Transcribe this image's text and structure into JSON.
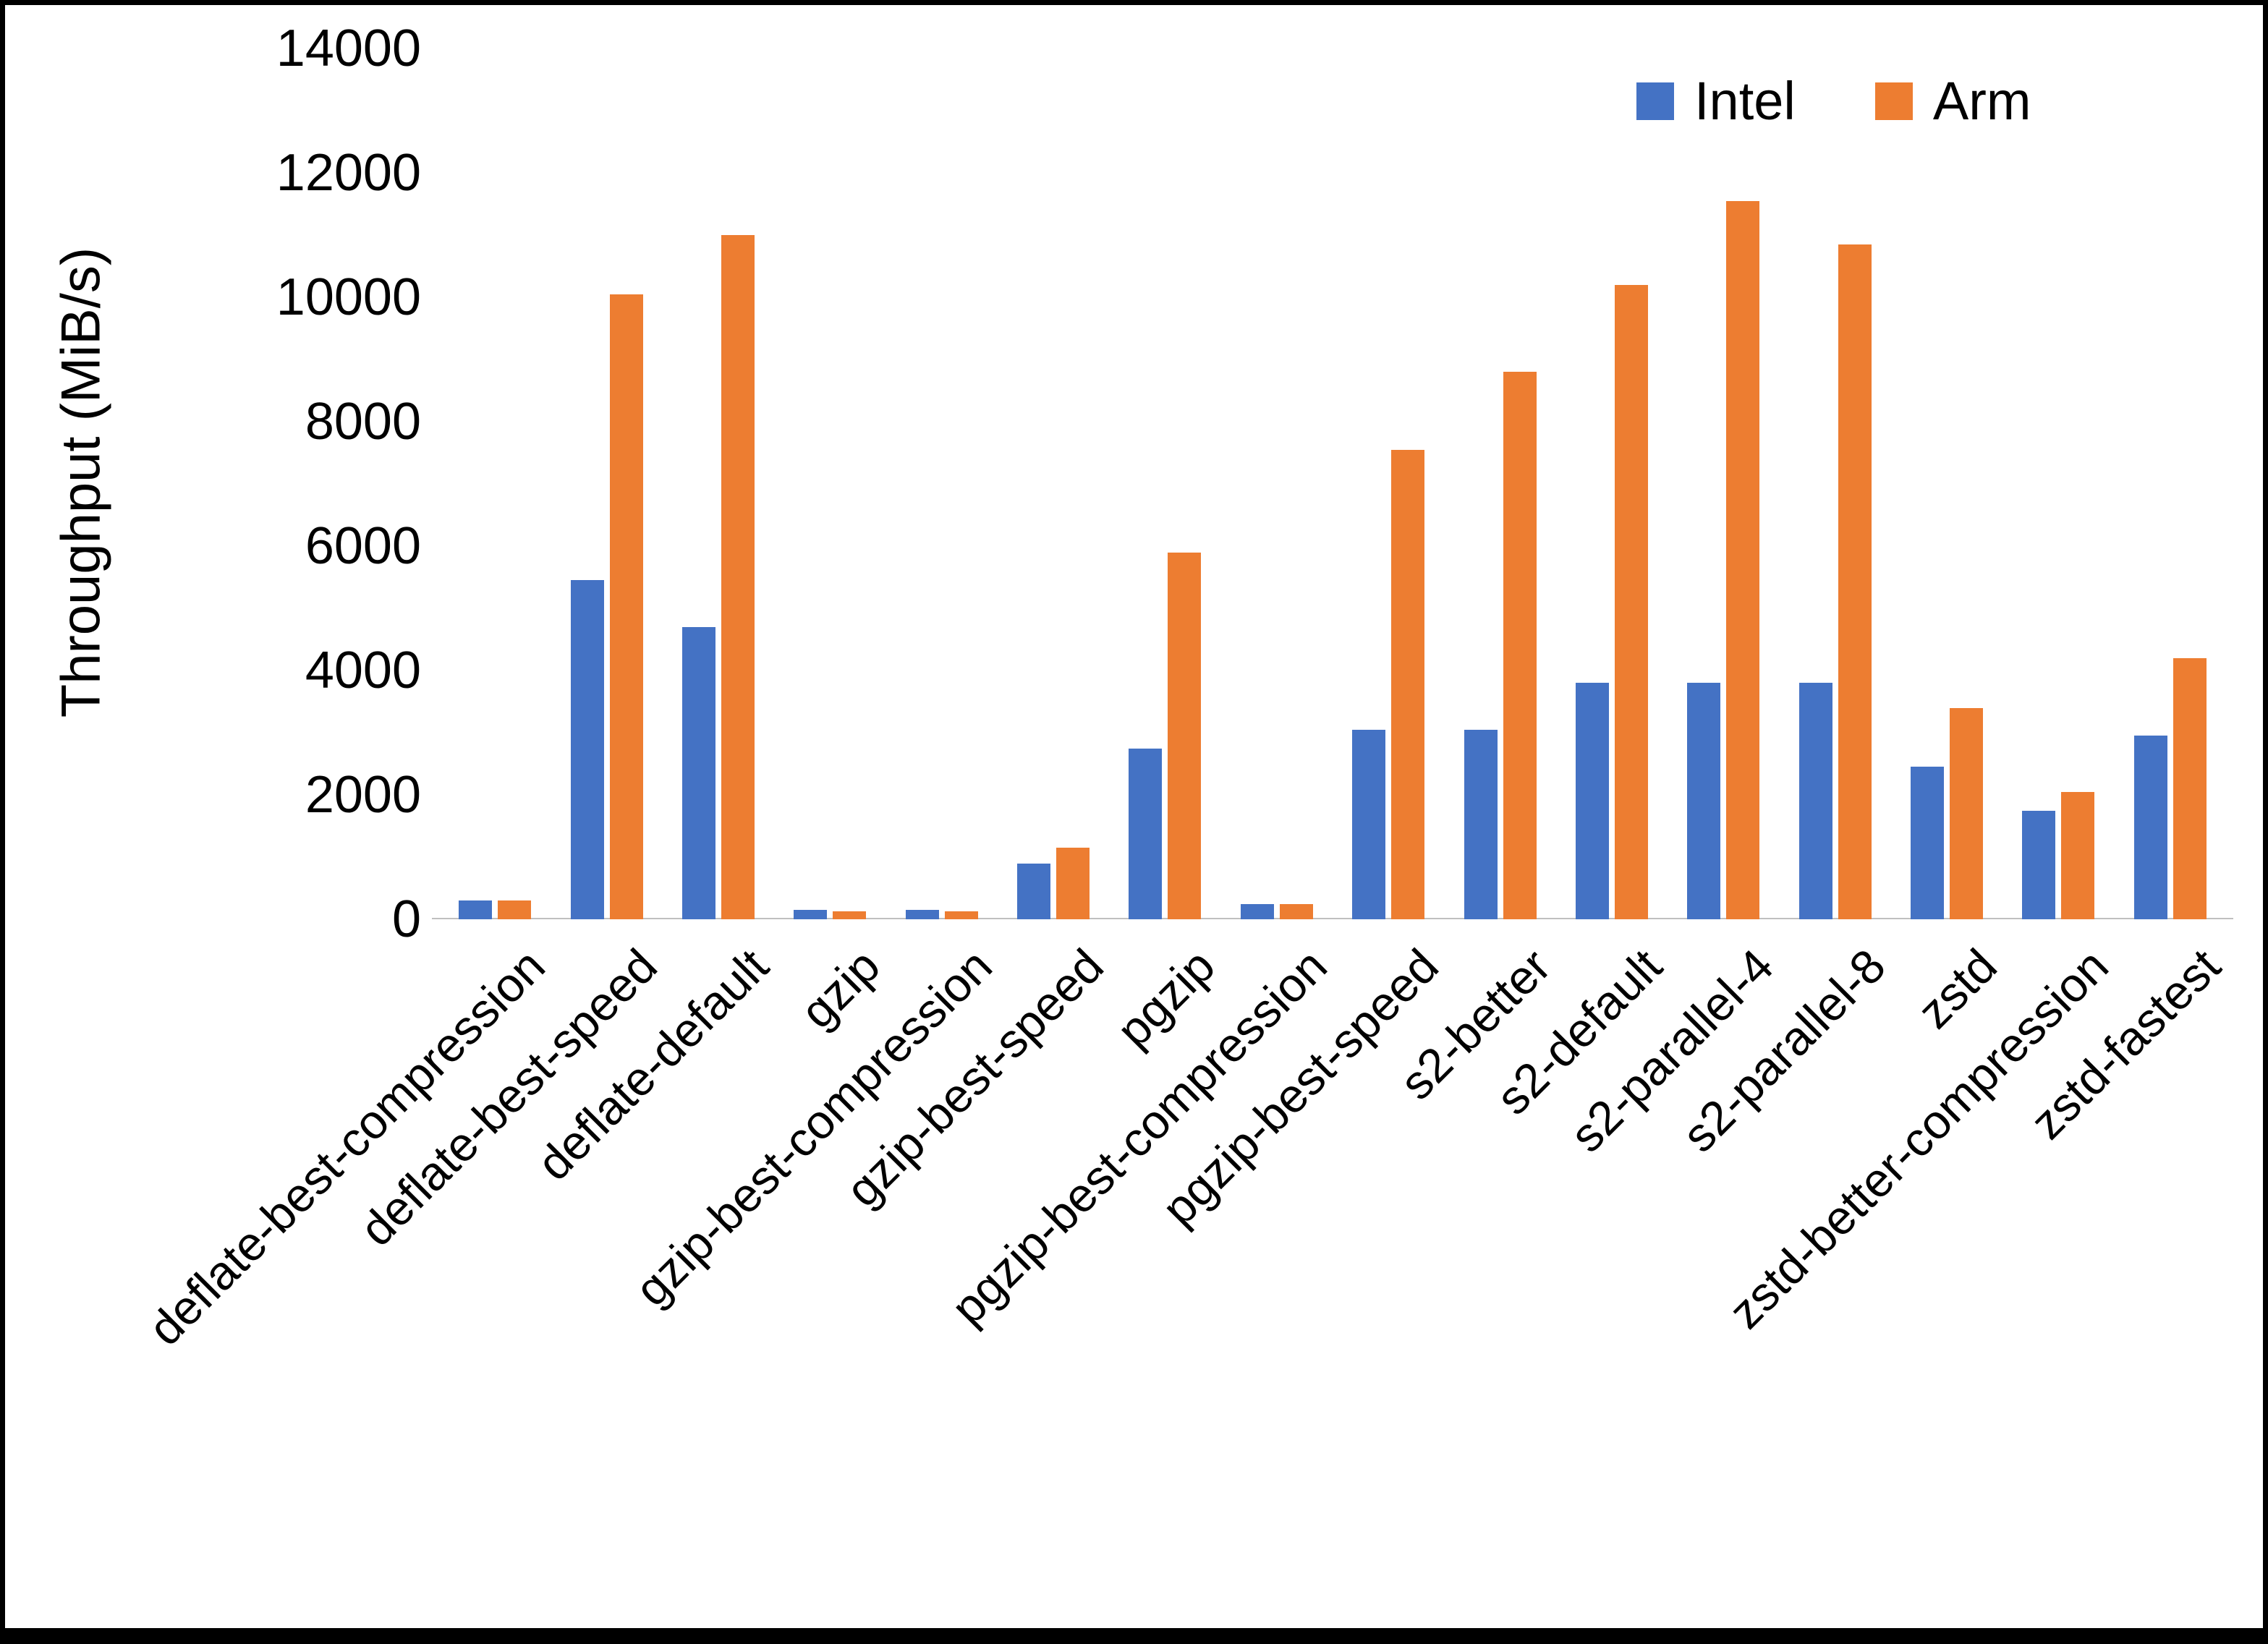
{
  "chart_data": {
    "type": "bar",
    "title": "",
    "xlabel": "",
    "ylabel": "Throughput (MiB/s)",
    "ylim": [
      0,
      14000
    ],
    "ytick_step": 2000,
    "yticks": [
      0,
      2000,
      4000,
      6000,
      8000,
      10000,
      12000,
      14000
    ],
    "grid": false,
    "legend_position": "top-right",
    "categories": [
      "deflate-best-compression",
      "deflate-best-speed",
      "deflate-default",
      "gzip",
      "gzip-best-compression",
      "gzip-best-speed",
      "pgzip",
      "pgzip-best-compression",
      "pgzip-best-speed",
      "s2-better",
      "s2-default",
      "s2-parallel-4",
      "s2-parallel-8",
      "zstd",
      "zstd-better-compression",
      "zstd-fastest"
    ],
    "series": [
      {
        "name": "Intel",
        "color": "#4472C4",
        "values": [
          300,
          5450,
          4700,
          150,
          150,
          900,
          2750,
          250,
          3050,
          3050,
          3800,
          3800,
          3800,
          2450,
          1750,
          2950
        ]
      },
      {
        "name": "Arm",
        "color": "#ED7D31",
        "values": [
          300,
          10050,
          11000,
          130,
          130,
          1150,
          5900,
          250,
          7550,
          8800,
          10200,
          11550,
          10850,
          3400,
          2050,
          4200
        ]
      }
    ]
  }
}
